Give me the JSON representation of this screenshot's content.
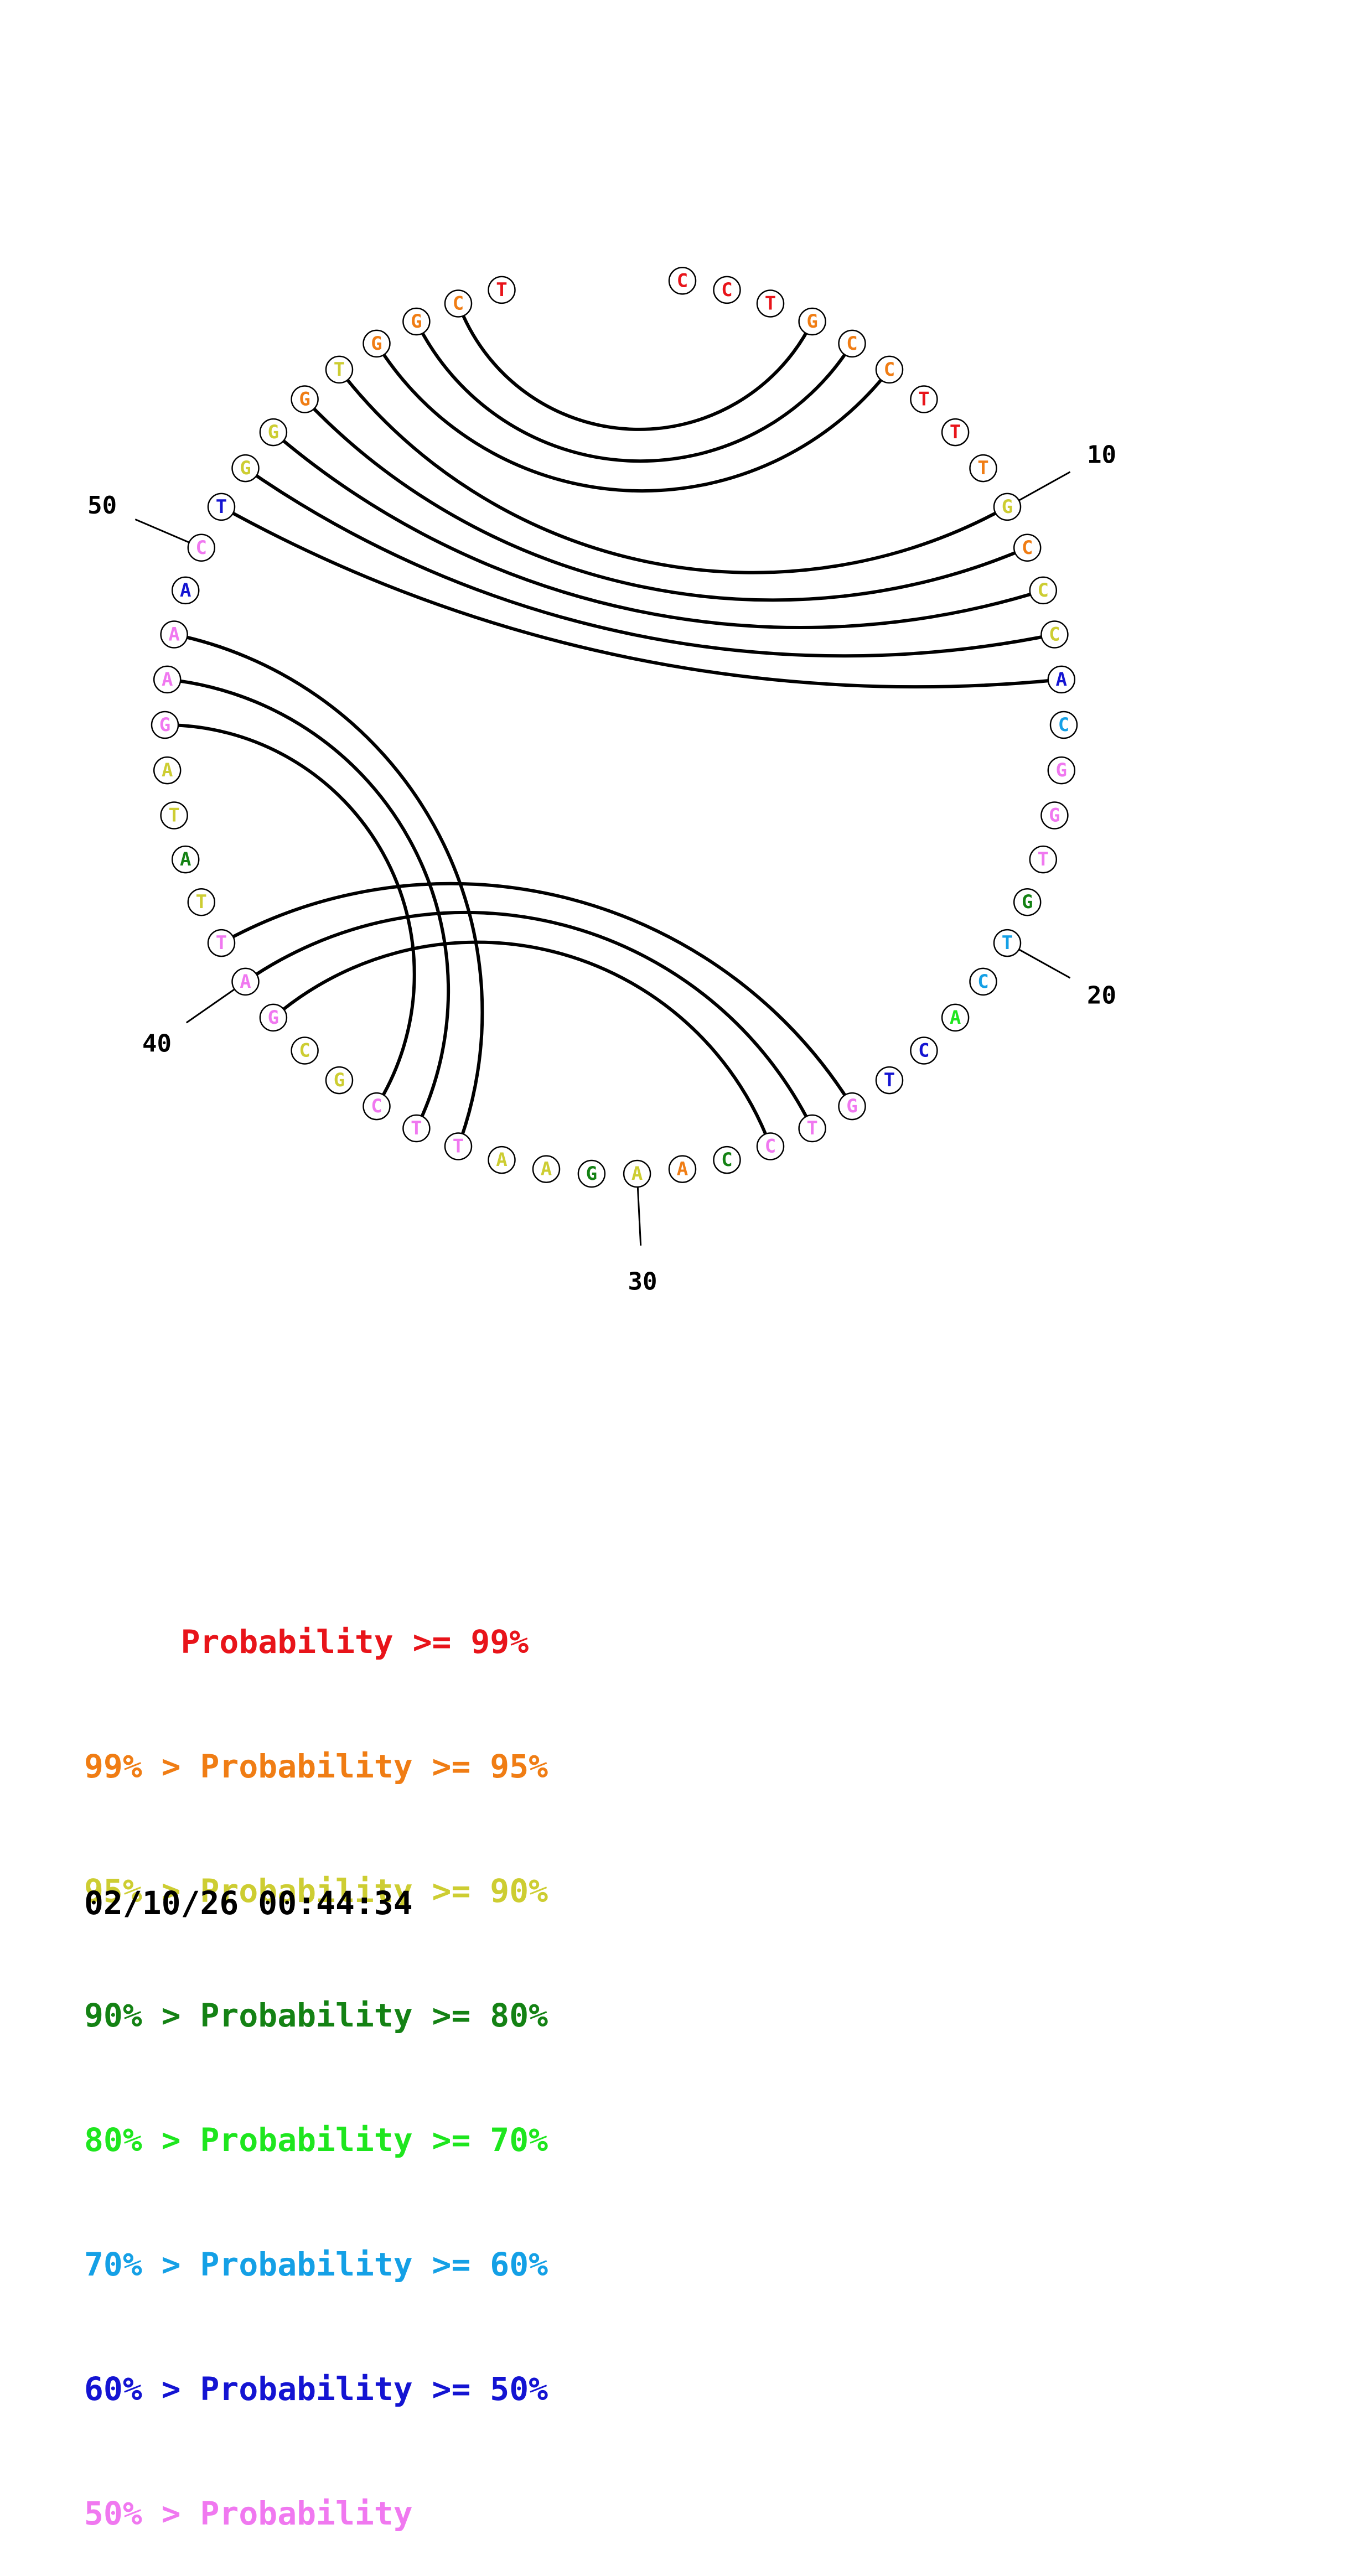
{
  "colors": {
    "p99": "#e8141a",
    "p95": "#f07d14",
    "p90": "#cdcd32",
    "p80": "#148214",
    "p70": "#1ee61e",
    "p60": "#14a0e6",
    "p50": "#1414d2",
    "plow": "#f078f0"
  },
  "nucleotides": [
    {
      "n": 1,
      "base": "C",
      "color": "p99"
    },
    {
      "n": 2,
      "base": "C",
      "color": "p99"
    },
    {
      "n": 3,
      "base": "T",
      "color": "p99"
    },
    {
      "n": 4,
      "base": "G",
      "color": "p95"
    },
    {
      "n": 5,
      "base": "C",
      "color": "p95"
    },
    {
      "n": 6,
      "base": "C",
      "color": "p95"
    },
    {
      "n": 7,
      "base": "T",
      "color": "p99"
    },
    {
      "n": 8,
      "base": "T",
      "color": "p99"
    },
    {
      "n": 9,
      "base": "T",
      "color": "p95"
    },
    {
      "n": 10,
      "base": "G",
      "color": "p90"
    },
    {
      "n": 11,
      "base": "C",
      "color": "p95"
    },
    {
      "n": 12,
      "base": "C",
      "color": "p90"
    },
    {
      "n": 13,
      "base": "C",
      "color": "p90"
    },
    {
      "n": 14,
      "base": "A",
      "color": "p50"
    },
    {
      "n": 15,
      "base": "C",
      "color": "p60"
    },
    {
      "n": 16,
      "base": "G",
      "color": "plow"
    },
    {
      "n": 17,
      "base": "G",
      "color": "plow"
    },
    {
      "n": 18,
      "base": "T",
      "color": "plow"
    },
    {
      "n": 19,
      "base": "G",
      "color": "p80"
    },
    {
      "n": 20,
      "base": "T",
      "color": "p60"
    },
    {
      "n": 21,
      "base": "C",
      "color": "p60"
    },
    {
      "n": 22,
      "base": "A",
      "color": "p70"
    },
    {
      "n": 23,
      "base": "C",
      "color": "p50"
    },
    {
      "n": 24,
      "base": "T",
      "color": "p50"
    },
    {
      "n": 25,
      "base": "G",
      "color": "plow"
    },
    {
      "n": 26,
      "base": "T",
      "color": "plow"
    },
    {
      "n": 27,
      "base": "C",
      "color": "plow"
    },
    {
      "n": 28,
      "base": "C",
      "color": "p80"
    },
    {
      "n": 29,
      "base": "A",
      "color": "p95"
    },
    {
      "n": 30,
      "base": "A",
      "color": "p90"
    },
    {
      "n": 31,
      "base": "G",
      "color": "p80"
    },
    {
      "n": 32,
      "base": "A",
      "color": "p90"
    },
    {
      "n": 33,
      "base": "A",
      "color": "p90"
    },
    {
      "n": 34,
      "base": "T",
      "color": "plow"
    },
    {
      "n": 35,
      "base": "T",
      "color": "plow"
    },
    {
      "n": 36,
      "base": "C",
      "color": "plow"
    },
    {
      "n": 37,
      "base": "G",
      "color": "p90"
    },
    {
      "n": 38,
      "base": "C",
      "color": "p90"
    },
    {
      "n": 39,
      "base": "G",
      "color": "plow"
    },
    {
      "n": 40,
      "base": "A",
      "color": "plow"
    },
    {
      "n": 41,
      "base": "T",
      "color": "plow"
    },
    {
      "n": 42,
      "base": "T",
      "color": "p90"
    },
    {
      "n": 43,
      "base": "A",
      "color": "p80"
    },
    {
      "n": 44,
      "base": "T",
      "color": "p90"
    },
    {
      "n": 45,
      "base": "A",
      "color": "p90"
    },
    {
      "n": 46,
      "base": "G",
      "color": "plow"
    },
    {
      "n": 47,
      "base": "A",
      "color": "plow"
    },
    {
      "n": 48,
      "base": "A",
      "color": "plow"
    },
    {
      "n": 49,
      "base": "A",
      "color": "p50"
    },
    {
      "n": 50,
      "base": "C",
      "color": "plow"
    },
    {
      "n": 51,
      "base": "T",
      "color": "p50"
    },
    {
      "n": 52,
      "base": "G",
      "color": "p90"
    },
    {
      "n": 53,
      "base": "G",
      "color": "p90"
    },
    {
      "n": 54,
      "base": "G",
      "color": "p95"
    },
    {
      "n": 55,
      "base": "T",
      "color": "p90"
    },
    {
      "n": 56,
      "base": "G",
      "color": "p95"
    },
    {
      "n": 57,
      "base": "G",
      "color": "p95"
    },
    {
      "n": 58,
      "base": "C",
      "color": "p95"
    },
    {
      "n": 59,
      "base": "T",
      "color": "p99"
    }
  ],
  "pairs": [
    [
      4,
      58
    ],
    [
      5,
      57
    ],
    [
      6,
      56
    ],
    [
      10,
      55
    ],
    [
      11,
      54
    ],
    [
      12,
      53
    ],
    [
      13,
      52
    ],
    [
      14,
      51
    ],
    [
      25,
      41
    ],
    [
      26,
      40
    ],
    [
      27,
      39
    ],
    [
      34,
      48
    ],
    [
      35,
      47
    ],
    [
      36,
      46
    ]
  ],
  "position_labels": [
    {
      "n": 10,
      "text": "10"
    },
    {
      "n": 20,
      "text": "20"
    },
    {
      "n": 30,
      "text": "30"
    },
    {
      "n": 40,
      "text": "40"
    },
    {
      "n": 50,
      "text": "50"
    }
  ],
  "legend": [
    {
      "text": "     Probability >= 99%",
      "color": "p99"
    },
    {
      "text": "99% > Probability >= 95%",
      "color": "p95"
    },
    {
      "text": "95% > Probability >= 90%",
      "color": "p90"
    },
    {
      "text": "90% > Probability >= 80%",
      "color": "p80"
    },
    {
      "text": "80% > Probability >= 70%",
      "color": "p70"
    },
    {
      "text": "70% > Probability >= 60%",
      "color": "p60"
    },
    {
      "text": "60% > Probability >= 50%",
      "color": "p50"
    },
    {
      "text": "50% > Probability",
      "color": "plow"
    }
  ],
  "timestamp": "02/10/26 00:44:34"
}
